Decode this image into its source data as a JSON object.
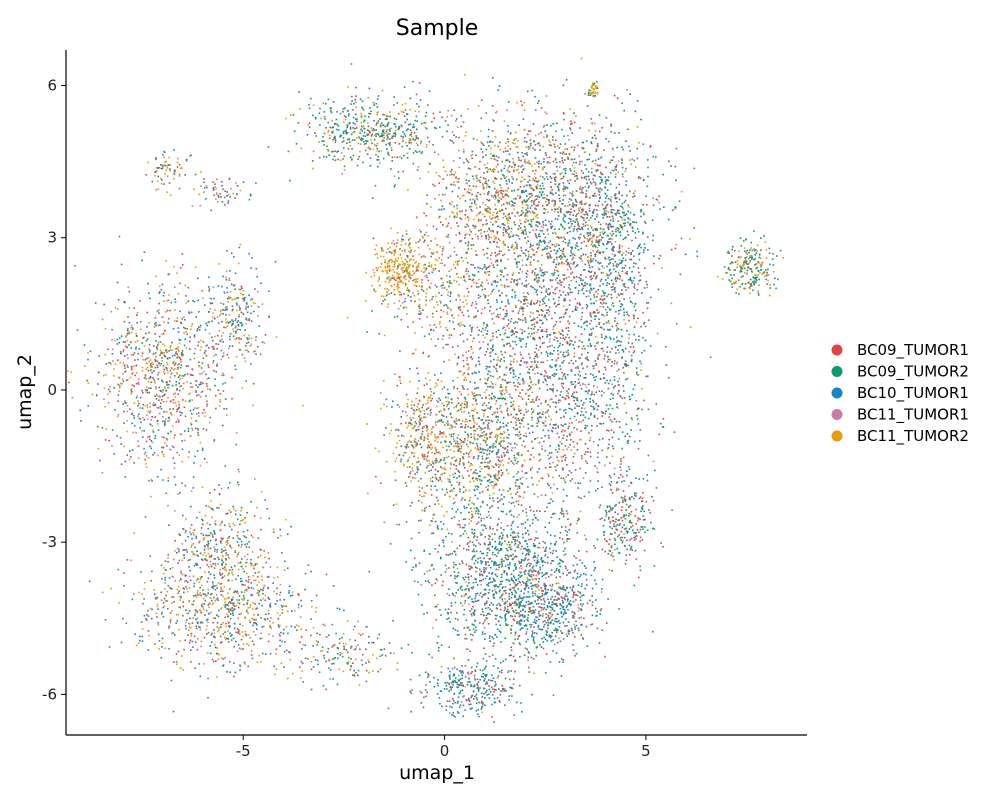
{
  "chart_data": {
    "type": "scatter",
    "title": "Sample",
    "xlabel": "umap_1",
    "ylabel": "umap_2",
    "xlim": [
      -9.4,
      9.0
    ],
    "ylim": [
      -6.8,
      6.7
    ],
    "x_ticks": [
      -5,
      0,
      5
    ],
    "y_ticks": [
      -6,
      -3,
      0,
      3,
      6
    ],
    "x_tick_labels": [
      "-5",
      "0",
      "5"
    ],
    "y_tick_labels": [
      "-6",
      "-3",
      "0",
      "3",
      "6"
    ],
    "grid": false,
    "legend_position": "right",
    "series": [
      {
        "name": "BC09_TUMOR1",
        "color": "#e4403f"
      },
      {
        "name": "BC09_TUMOR2",
        "color": "#0c9a6b"
      },
      {
        "name": "BC10_TUMOR1",
        "color": "#1585cc"
      },
      {
        "name": "BC11_TUMOR1",
        "color": "#cb79a7"
      },
      {
        "name": "BC11_TUMOR2",
        "color": "#e69f00"
      }
    ],
    "clusters": [
      {
        "x": 3.0,
        "y": 3.4,
        "sx": 1.1,
        "sy": 1.0,
        "n": 1400,
        "w": [
          0.25,
          0.3,
          0.25,
          0.08,
          0.12
        ]
      },
      {
        "x": 1.2,
        "y": 3.8,
        "sx": 0.9,
        "sy": 0.8,
        "n": 700,
        "w": [
          0.22,
          0.2,
          0.12,
          0.1,
          0.36
        ]
      },
      {
        "x": 4.2,
        "y": 2.0,
        "sx": 0.45,
        "sy": 1.3,
        "n": 500,
        "w": [
          0.2,
          0.35,
          0.35,
          0.05,
          0.05
        ]
      },
      {
        "x": 2.2,
        "y": 1.0,
        "sx": 1.0,
        "sy": 0.9,
        "n": 700,
        "w": [
          0.3,
          0.3,
          0.25,
          0.08,
          0.07
        ]
      },
      {
        "x": 3.2,
        "y": -0.5,
        "sx": 0.9,
        "sy": 0.9,
        "n": 500,
        "w": [
          0.3,
          0.3,
          0.25,
          0.08,
          0.07
        ]
      },
      {
        "x": 0.8,
        "y": -1.0,
        "sx": 0.9,
        "sy": 0.9,
        "n": 1100,
        "w": [
          0.18,
          0.22,
          0.2,
          0.08,
          0.32
        ]
      },
      {
        "x": 1.6,
        "y": -3.7,
        "sx": 1.0,
        "sy": 0.75,
        "n": 1200,
        "w": [
          0.25,
          0.4,
          0.25,
          0.05,
          0.05
        ]
      },
      {
        "x": 2.6,
        "y": -4.4,
        "sx": 0.6,
        "sy": 0.4,
        "n": 350,
        "w": [
          0.15,
          0.25,
          0.5,
          0.05,
          0.05
        ]
      },
      {
        "x": 4.5,
        "y": -2.6,
        "sx": 0.3,
        "sy": 0.5,
        "n": 220,
        "w": [
          0.3,
          0.5,
          0.15,
          0.03,
          0.02
        ]
      },
      {
        "x": 0.6,
        "y": -5.9,
        "sx": 0.6,
        "sy": 0.25,
        "n": 300,
        "w": [
          0.2,
          0.3,
          0.4,
          0.05,
          0.05
        ]
      },
      {
        "x": -1.1,
        "y": 2.4,
        "sx": 0.35,
        "sy": 0.3,
        "n": 260,
        "w": [
          0.08,
          0.04,
          0.04,
          0.04,
          0.8
        ]
      },
      {
        "x": 0.0,
        "y": 2.0,
        "sx": 0.9,
        "sy": 0.5,
        "n": 300,
        "w": [
          0.2,
          0.2,
          0.15,
          0.15,
          0.3
        ]
      },
      {
        "x": -1.8,
        "y": 5.1,
        "sx": 0.9,
        "sy": 0.35,
        "n": 500,
        "w": [
          0.15,
          0.45,
          0.15,
          0.05,
          0.2
        ]
      },
      {
        "x": -7.0,
        "y": 0.2,
        "sx": 0.8,
        "sy": 0.9,
        "n": 900,
        "w": [
          0.18,
          0.12,
          0.28,
          0.12,
          0.3
        ]
      },
      {
        "x": -5.2,
        "y": 1.5,
        "sx": 0.4,
        "sy": 0.5,
        "n": 250,
        "w": [
          0.12,
          0.08,
          0.4,
          0.1,
          0.3
        ]
      },
      {
        "x": -5.5,
        "y": -4.3,
        "sx": 1.1,
        "sy": 0.6,
        "n": 800,
        "w": [
          0.18,
          0.12,
          0.3,
          0.08,
          0.32
        ]
      },
      {
        "x": -5.6,
        "y": -3.0,
        "sx": 0.6,
        "sy": 0.5,
        "n": 300,
        "w": [
          0.15,
          0.15,
          0.3,
          0.1,
          0.3
        ]
      },
      {
        "x": -0.6,
        "y": -1.0,
        "sx": 0.4,
        "sy": 0.6,
        "n": 220,
        "w": [
          0.2,
          0.1,
          0.1,
          0.1,
          0.5
        ]
      },
      {
        "x": -2.5,
        "y": -5.2,
        "sx": 0.6,
        "sy": 0.3,
        "n": 150,
        "w": [
          0.2,
          0.3,
          0.2,
          0.1,
          0.2
        ]
      },
      {
        "x": 7.6,
        "y": 2.4,
        "sx": 0.3,
        "sy": 0.25,
        "n": 220,
        "w": [
          0.15,
          0.45,
          0.1,
          0.05,
          0.25
        ]
      },
      {
        "x": 3.7,
        "y": 5.9,
        "sx": 0.06,
        "sy": 0.08,
        "n": 40,
        "w": [
          0.1,
          0.1,
          0.1,
          0.1,
          0.6
        ]
      },
      {
        "x": -6.9,
        "y": 4.3,
        "sx": 0.25,
        "sy": 0.2,
        "n": 70,
        "w": [
          0.15,
          0.1,
          0.25,
          0.1,
          0.4
        ]
      },
      {
        "x": -5.6,
        "y": 3.9,
        "sx": 0.45,
        "sy": 0.15,
        "n": 60,
        "w": [
          0.15,
          0.1,
          0.4,
          0.1,
          0.25
        ]
      }
    ]
  }
}
